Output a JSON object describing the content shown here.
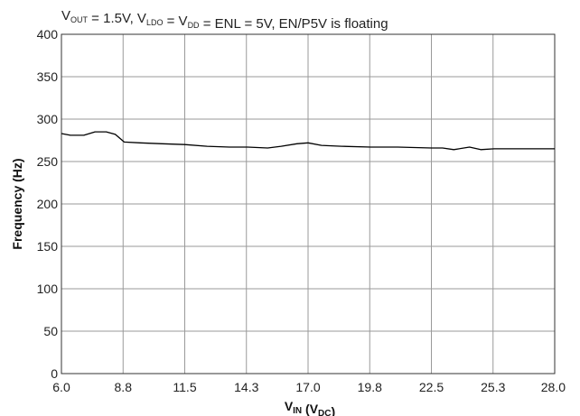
{
  "chart_data": {
    "type": "line",
    "title_parts": [
      {
        "t": "V",
        "sub": false
      },
      {
        "t": "OUT",
        "sub": true
      },
      {
        "t": " = 1.5V, V",
        "sub": false
      },
      {
        "t": "LDO",
        "sub": true
      },
      {
        "t": " = V",
        "sub": false
      },
      {
        "t": "DD",
        "sub": true
      },
      {
        "t": " = ENL = 5V, EN/P5V is floating",
        "sub": false
      }
    ],
    "xlabel_parts": [
      {
        "t": "V",
        "sub": false
      },
      {
        "t": "IN",
        "sub": true
      },
      {
        "t": " (V",
        "sub": false
      },
      {
        "t": "DC",
        "sub": true
      },
      {
        "t": ")",
        "sub": false
      }
    ],
    "ylabel": "Frequency (Hz)",
    "xlim": [
      6.0,
      28.0
    ],
    "ylim": [
      0,
      400
    ],
    "x_tick_labels": [
      "6.0",
      "8.8",
      "11.5",
      "14.3",
      "17.0",
      "19.8",
      "22.5",
      "25.3",
      "28.0"
    ],
    "y_tick_labels": [
      "0",
      "50",
      "100",
      "150",
      "200",
      "250",
      "300",
      "350",
      "400"
    ],
    "grid": true,
    "series": [
      {
        "color": "#000000",
        "x": [
          6.0,
          6.4,
          7.0,
          7.5,
          8.0,
          8.4,
          8.8,
          9.5,
          10.5,
          11.5,
          12.5,
          13.5,
          14.3,
          15.2,
          15.8,
          16.5,
          17.0,
          17.6,
          18.5,
          19.8,
          21.0,
          22.5,
          23.0,
          23.5,
          24.2,
          24.7,
          25.3,
          26.5,
          28.0
        ],
        "y": [
          283,
          281,
          281,
          285,
          285,
          282,
          273,
          272,
          271,
          270,
          268,
          267,
          267,
          266,
          268,
          271,
          272,
          269,
          268,
          267,
          267,
          266,
          266,
          264,
          267,
          264,
          265,
          265,
          265
        ]
      }
    ]
  }
}
